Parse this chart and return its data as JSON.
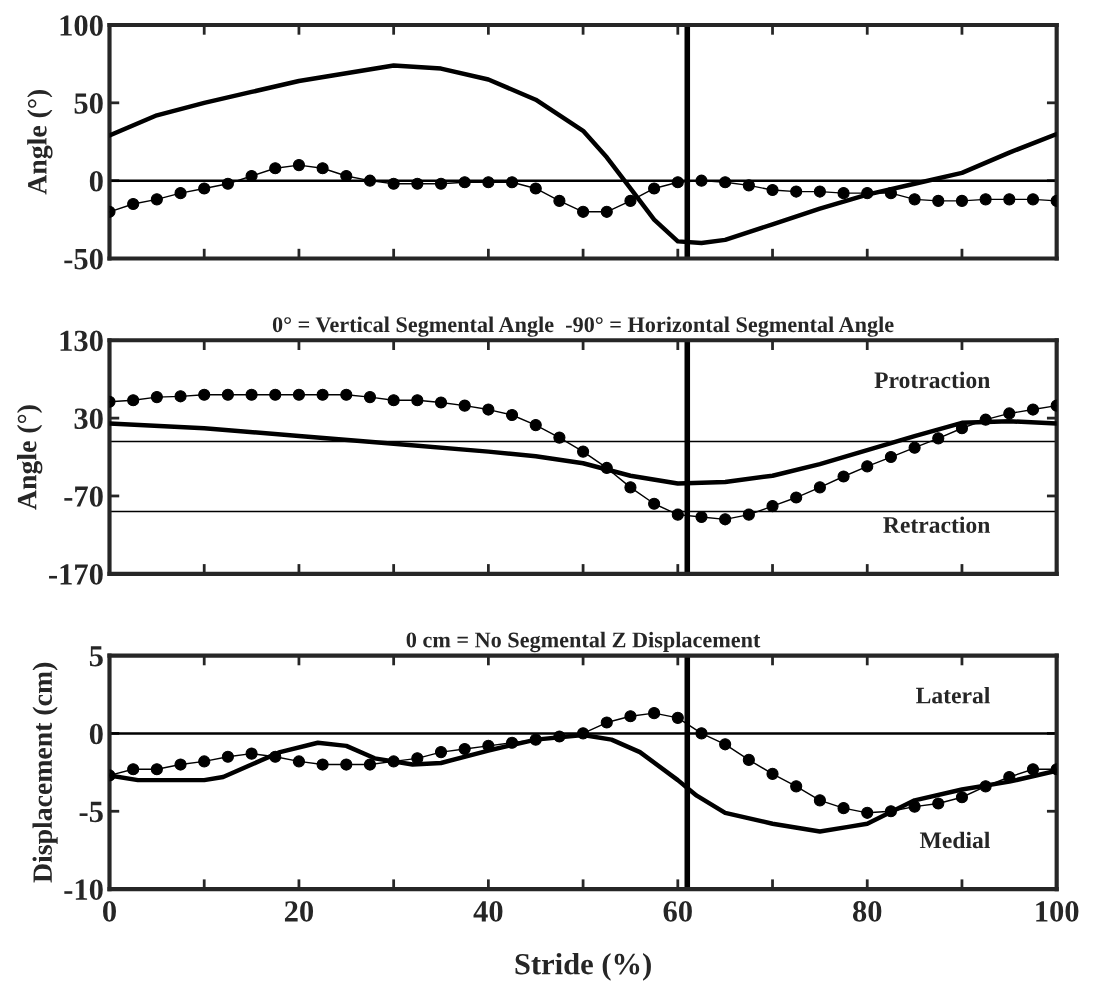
{
  "chart_data": [
    {
      "type": "line",
      "ylabel": "Angle (°)",
      "xlim": [
        0,
        100
      ],
      "ylim": [
        -50,
        100
      ],
      "yticks": [
        -50,
        0,
        50,
        100
      ],
      "xticks": [
        0,
        {
          "value": 10,
          "label": null
        },
        20,
        {
          "value": 30,
          "label": null
        },
        40,
        {
          "value": 50,
          "label": null
        },
        60,
        {
          "value": 70,
          "label": null
        },
        80,
        {
          "value": 90,
          "label": null
        },
        100
      ],
      "tick_labels": "y",
      "grid": false,
      "legend": false,
      "ref_lines": [
        {
          "axis": "y",
          "value": 0
        },
        {
          "axis": "x",
          "value": 61
        }
      ],
      "series": [
        {
          "color": "#000000",
          "marker": "none",
          "x": [
            0,
            5,
            10,
            15,
            20,
            25,
            30,
            35,
            40,
            45,
            50,
            52.5,
            55,
            57.5,
            60,
            62.5,
            65,
            70,
            75,
            80,
            85,
            90,
            95,
            100
          ],
          "values": [
            29,
            42,
            50,
            57,
            64,
            69,
            74,
            72,
            65,
            52,
            32,
            15,
            -5,
            -25,
            -39,
            -40,
            -38,
            -28,
            -18,
            -9,
            -2,
            5,
            18,
            30
          ]
        },
        {
          "color": "#000000",
          "marker": "circle",
          "x": [
            0,
            2.5,
            5,
            7.5,
            10,
            12.5,
            15,
            17.5,
            20,
            22.5,
            25,
            27.5,
            30,
            32.5,
            35,
            37.5,
            40,
            42.5,
            45,
            47.5,
            50,
            52.5,
            55,
            57.5,
            60,
            62.5,
            65,
            67.5,
            70,
            72.5,
            75,
            77.5,
            80,
            82.5,
            85,
            87.5,
            90,
            92.5,
            95,
            97.5,
            100
          ],
          "values": [
            -20,
            -15,
            -12,
            -8,
            -5,
            -2,
            3,
            8,
            10,
            8,
            3,
            0,
            -2,
            -2,
            -2,
            -1,
            -1,
            -1,
            -5,
            -13,
            -20,
            -20,
            -13,
            -5,
            -1,
            0,
            -1,
            -3,
            -6,
            -7,
            -7,
            -8,
            -8,
            -8,
            -12,
            -13,
            -13,
            -12,
            -12,
            -12,
            -13
          ]
        }
      ]
    },
    {
      "type": "line",
      "title": "0° = Vertical Segmental Angle  -90° = Horizontal Segmental Angle",
      "ylabel": "Angle (°)",
      "xlim": [
        0,
        100
      ],
      "ylim": [
        -170,
        130
      ],
      "yticks": [
        -170,
        -70,
        30,
        130
      ],
      "xticks": [
        0,
        {
          "value": 10,
          "label": null
        },
        20,
        {
          "value": 30,
          "label": null
        },
        40,
        {
          "value": 50,
          "label": null
        },
        60,
        {
          "value": 70,
          "label": null
        },
        80,
        {
          "value": 90,
          "label": null
        },
        100
      ],
      "tick_labels": "y",
      "grid": false,
      "legend": false,
      "annotations": [
        "Protraction",
        "Retraction"
      ],
      "ref_lines": [
        {
          "axis": "y",
          "value": 0
        },
        {
          "axis": "y",
          "value": -90
        },
        {
          "axis": "x",
          "value": 61
        }
      ],
      "series": [
        {
          "color": "#000000",
          "marker": "none",
          "x": [
            0,
            10,
            20,
            30,
            40,
            45,
            50,
            55,
            60,
            65,
            70,
            75,
            80,
            85,
            90,
            95,
            100
          ],
          "values": [
            23,
            17,
            7,
            -3,
            -13,
            -19,
            -28,
            -44,
            -54,
            -52,
            -44,
            -29,
            -11,
            7,
            24,
            26,
            23
          ]
        },
        {
          "color": "#000000",
          "marker": "circle",
          "x": [
            0,
            2.5,
            5,
            7.5,
            10,
            12.5,
            15,
            17.5,
            20,
            22.5,
            25,
            27.5,
            30,
            32.5,
            35,
            37.5,
            40,
            42.5,
            45,
            47.5,
            50,
            52.5,
            55,
            57.5,
            60,
            62.5,
            65,
            67.5,
            70,
            72.5,
            75,
            77.5,
            80,
            82.5,
            85,
            87.5,
            90,
            92.5,
            95,
            97.5,
            100
          ],
          "values": [
            51,
            53,
            57,
            58,
            60,
            60,
            60,
            60,
            60,
            60,
            60,
            57,
            53,
            53,
            50,
            46,
            41,
            34,
            21,
            5,
            -13,
            -34,
            -59,
            -80,
            -94,
            -97,
            -100,
            -94,
            -83,
            -72,
            -59,
            -45,
            -32,
            -20,
            -8,
            4,
            17,
            28,
            36,
            41,
            46
          ]
        }
      ]
    },
    {
      "type": "line",
      "title": "0 cm = No Segmental Z Displacement",
      "xlabel": "Stride (%)",
      "ylabel": "Displacement (cm)",
      "xlim": [
        0,
        100
      ],
      "ylim": [
        -10,
        5
      ],
      "yticks": [
        -10,
        -5,
        0,
        5
      ],
      "xticks": [
        0,
        {
          "value": 10,
          "label": null
        },
        20,
        {
          "value": 30,
          "label": null
        },
        40,
        {
          "value": 50,
          "label": null
        },
        60,
        {
          "value": 70,
          "label": null
        },
        80,
        {
          "value": 90,
          "label": null
        },
        100
      ],
      "grid": false,
      "legend": false,
      "annotations": [
        "Lateral",
        "Medial"
      ],
      "ref_lines": [
        {
          "axis": "y",
          "value": 0
        },
        {
          "axis": "x",
          "value": 61
        }
      ],
      "series": [
        {
          "color": "#000000",
          "marker": "none",
          "x": [
            0,
            3,
            10,
            12,
            18,
            22,
            25,
            28,
            32,
            35,
            40,
            45,
            50,
            53,
            56,
            60,
            62,
            65,
            70,
            75,
            78,
            80,
            85,
            90,
            95,
            100
          ],
          "values": [
            -2.7,
            -3.0,
            -3.0,
            -2.8,
            -1.2,
            -0.6,
            -0.8,
            -1.6,
            -2.0,
            -1.9,
            -1.1,
            -0.4,
            -0.1,
            -0.4,
            -1.2,
            -3.0,
            -4.0,
            -5.1,
            -5.8,
            -6.3,
            -6.0,
            -5.8,
            -4.3,
            -3.6,
            -3.1,
            -2.4
          ]
        },
        {
          "color": "#000000",
          "marker": "circle",
          "x": [
            0,
            2.5,
            5,
            7.5,
            10,
            12.5,
            15,
            17.5,
            20,
            22.5,
            25,
            27.5,
            30,
            32.5,
            35,
            37.5,
            40,
            42.5,
            45,
            47.5,
            50,
            52.5,
            55,
            57.5,
            60,
            62.5,
            65,
            67.5,
            70,
            72.5,
            75,
            77.5,
            80,
            82.5,
            85,
            87.5,
            90,
            92.5,
            95,
            97.5,
            100
          ],
          "values": [
            -2.7,
            -2.3,
            -2.3,
            -2.0,
            -1.8,
            -1.5,
            -1.3,
            -1.5,
            -1.8,
            -2.0,
            -2.0,
            -2.0,
            -1.8,
            -1.6,
            -1.2,
            -1.0,
            -0.8,
            -0.6,
            -0.4,
            -0.2,
            0,
            0.7,
            1.1,
            1.3,
            1.0,
            0,
            -0.7,
            -1.7,
            -2.6,
            -3.4,
            -4.3,
            -4.8,
            -5.1,
            -5.0,
            -4.7,
            -4.5,
            -4.1,
            -3.4,
            -2.8,
            -2.3,
            -2.3
          ]
        }
      ]
    }
  ]
}
